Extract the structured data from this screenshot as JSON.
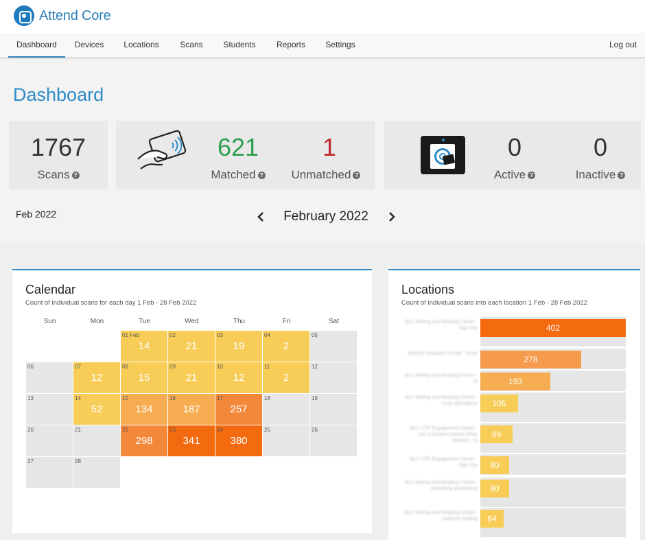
{
  "app": {
    "name": "Attend Core"
  },
  "nav": {
    "items": [
      {
        "label": "Dashboard",
        "active": true
      },
      {
        "label": "Devices"
      },
      {
        "label": "Locations"
      },
      {
        "label": "Scans"
      },
      {
        "label": "Students"
      },
      {
        "label": "Reports"
      },
      {
        "label": "Settings"
      }
    ],
    "logout": "Log out"
  },
  "page_title": "Dashboard",
  "stats": {
    "scans": {
      "value": "1767",
      "label": "Scans"
    },
    "matched": {
      "value": "621",
      "label": "Matched",
      "color": "#2e9e4f"
    },
    "unmatched": {
      "value": "1",
      "label": "Unmatched",
      "color": "#c0272d"
    },
    "active": {
      "value": "0",
      "label": "Active"
    },
    "inactive": {
      "value": "0",
      "label": "Inactive"
    }
  },
  "month": {
    "short_label": "Feb 2022",
    "title": "February 2022",
    "prev_icon": "chevron-left-icon",
    "next_icon": "chevron-right-icon"
  },
  "calendar": {
    "title": "Calendar",
    "subtitle": "Count of individual scans for each day 1 Feb - 28 Feb 2022",
    "weekdays": [
      "Sun",
      "Mon",
      "Tue",
      "Wed",
      "Thu",
      "Fri",
      "Sat"
    ],
    "weeks": [
      [
        null,
        null,
        {
          "d": "01 Feb",
          "v": "14"
        },
        {
          "d": "02",
          "v": "21"
        },
        {
          "d": "03",
          "v": "19"
        },
        {
          "d": "04",
          "v": "2"
        },
        {
          "d": "05"
        }
      ],
      [
        {
          "d": "06"
        },
        {
          "d": "07",
          "v": "12"
        },
        {
          "d": "08",
          "v": "15"
        },
        {
          "d": "09",
          "v": "21"
        },
        {
          "d": "10",
          "v": "12"
        },
        {
          "d": "11",
          "v": "2"
        },
        {
          "d": "12"
        }
      ],
      [
        {
          "d": "13"
        },
        {
          "d": "14",
          "v": "52"
        },
        {
          "d": "15",
          "v": "134"
        },
        {
          "d": "16",
          "v": "187"
        },
        {
          "d": "17",
          "v": "257"
        },
        {
          "d": "18"
        },
        {
          "d": "19"
        }
      ],
      [
        {
          "d": "20"
        },
        {
          "d": "21"
        },
        {
          "d": "22",
          "v": "298"
        },
        {
          "d": "23",
          "v": "341"
        },
        {
          "d": "24",
          "v": "380"
        },
        {
          "d": "25"
        },
        {
          "d": "26"
        }
      ],
      [
        {
          "d": "27"
        },
        {
          "d": "28"
        }
      ]
    ]
  },
  "locations": {
    "title": "Locations",
    "subtitle": "Count of individual scans into each location 1 Feb - 28 Feb 2022",
    "max": 402,
    "rows": [
      {
        "name": "BLC Writing and Reading Center - Sign Out",
        "value": 402
      },
      {
        "name": "SANDS Research Center - Front",
        "value": 278
      },
      {
        "name": "BLC Writing and Reading Center - In",
        "value": 193
      },
      {
        "name": "BLC Writing and Reading Center - Drop attendance",
        "value": 105
      },
      {
        "name": "BLC CTE Engagement Center - Use a Student Device (Peer Mentor) - In",
        "value": 89
      },
      {
        "name": "BLC CTE Engagement Center - Sign Out",
        "value": 80
      },
      {
        "name": "BLC Writing and Reading Center - Workshop attendance",
        "value": 80
      },
      {
        "name": "BLC Writing and Reading Center - Network reading",
        "value": 64
      }
    ]
  },
  "colors": {
    "accent": "#2e8bc9",
    "scale": [
      "#f7cd57",
      "#f6ad51",
      "#f4883a",
      "#f46a0f"
    ]
  }
}
